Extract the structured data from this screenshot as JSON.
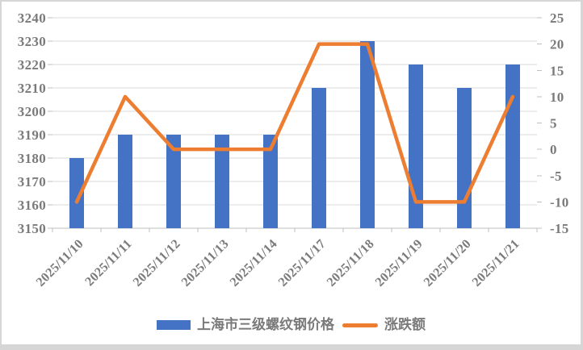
{
  "chart_data": {
    "type": "bar",
    "combo": "bar+line",
    "title": "",
    "categories": [
      "2025/11/10",
      "2025/11/11",
      "2025/11/12",
      "2025/11/13",
      "2025/11/14",
      "2025/11/17",
      "2025/11/18",
      "2025/11/19",
      "2025/11/20",
      "2025/11/21"
    ],
    "series": [
      {
        "name": "上海市三级螺纹钢价格",
        "type": "bar",
        "axis": "left",
        "color": "#4472C4",
        "values": [
          3180,
          3190,
          3190,
          3190,
          3190,
          3210,
          3230,
          3220,
          3210,
          3220
        ]
      },
      {
        "name": "涨跌额",
        "type": "line",
        "axis": "right",
        "color": "#ED7D31",
        "values": [
          -10,
          10,
          0,
          0,
          0,
          20,
          20,
          -10,
          -10,
          10
        ]
      }
    ],
    "left_axis": {
      "min": 3150,
      "max": 3240,
      "step": 10,
      "tick_labels": [
        "3240",
        "3230",
        "3220",
        "3210",
        "3200",
        "3190",
        "3180",
        "3170",
        "3160",
        "3150"
      ]
    },
    "right_axis": {
      "min": -15,
      "max": 25,
      "step": 5,
      "tick_labels": [
        "25",
        "20",
        "15",
        "10",
        "5",
        "0",
        "-5",
        "-10",
        "-15"
      ]
    },
    "grid": true,
    "legend_position": "bottom",
    "x_label_rotation_deg": -45
  },
  "colors": {
    "bar": "#4472C4",
    "line": "#ED7D31",
    "gridline": "#D9D9D9",
    "axis_line": "#BFBFBF",
    "label_text": "#7A7A7A",
    "frame": "#D6D6D6",
    "background": "#FFFFFF"
  }
}
